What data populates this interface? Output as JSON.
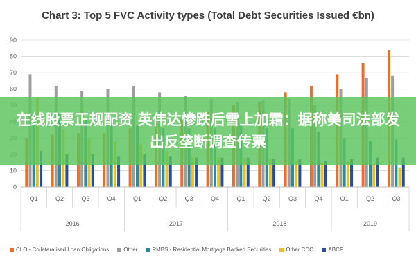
{
  "chart_data": {
    "type": "bar",
    "title": "Chart 3: Top 5 FVC Activity types (Total Debt Securities Issued €bn)",
    "ylim": [
      0,
      90
    ],
    "yticks": [
      0,
      10,
      20,
      30,
      40,
      50,
      60,
      70,
      80,
      90
    ],
    "grid": true,
    "legend_position": "bottom",
    "categories": [
      "Q1",
      "Q2",
      "Q3",
      "Q4",
      "Q1",
      "Q2",
      "Q3",
      "Q4",
      "Q1",
      "Q2",
      "Q3",
      "Q4",
      "Q1",
      "Q2",
      "Q3"
    ],
    "years": [
      {
        "label": "2016",
        "count": 4
      },
      {
        "label": "2017",
        "count": 4
      },
      {
        "label": "2018",
        "count": 4
      },
      {
        "label": "2019",
        "count": 3
      }
    ],
    "series": [
      {
        "name": "CLO - Collateralised Loan Obligations",
        "color": "#e8702a",
        "values": [
          30,
          32,
          33,
          33,
          36,
          40,
          42,
          46,
          50,
          52,
          58,
          62,
          69,
          76,
          84
        ]
      },
      {
        "name": "Other",
        "color": "#9e9e9e",
        "values": [
          69,
          62,
          59,
          60,
          62,
          58,
          56,
          54,
          52,
          53,
          54,
          50,
          60,
          67,
          68
        ]
      },
      {
        "name": "RMBS - Residential Mortgage Backed Securities",
        "color": "#2e8b9b",
        "values": [
          46,
          45,
          42,
          40,
          38,
          36,
          36,
          36,
          38,
          36,
          36,
          34,
          30,
          28,
          29
        ]
      },
      {
        "name": "Other CDO",
        "color": "#e6c229",
        "values": [
          55,
          35,
          30,
          28,
          26,
          22,
          18,
          18,
          18,
          17,
          16,
          15,
          16,
          14,
          12
        ]
      },
      {
        "name": "ABCP",
        "color": "#2a4d9b",
        "values": [
          22,
          20,
          20,
          19,
          20,
          19,
          18,
          18,
          18,
          17,
          17,
          16,
          17,
          18,
          18
        ]
      }
    ]
  },
  "overlay": {
    "text": "在线股票正规配资 英伟达惨跌后雪上加霜：据称美司法部发出反垄断调查传票"
  }
}
